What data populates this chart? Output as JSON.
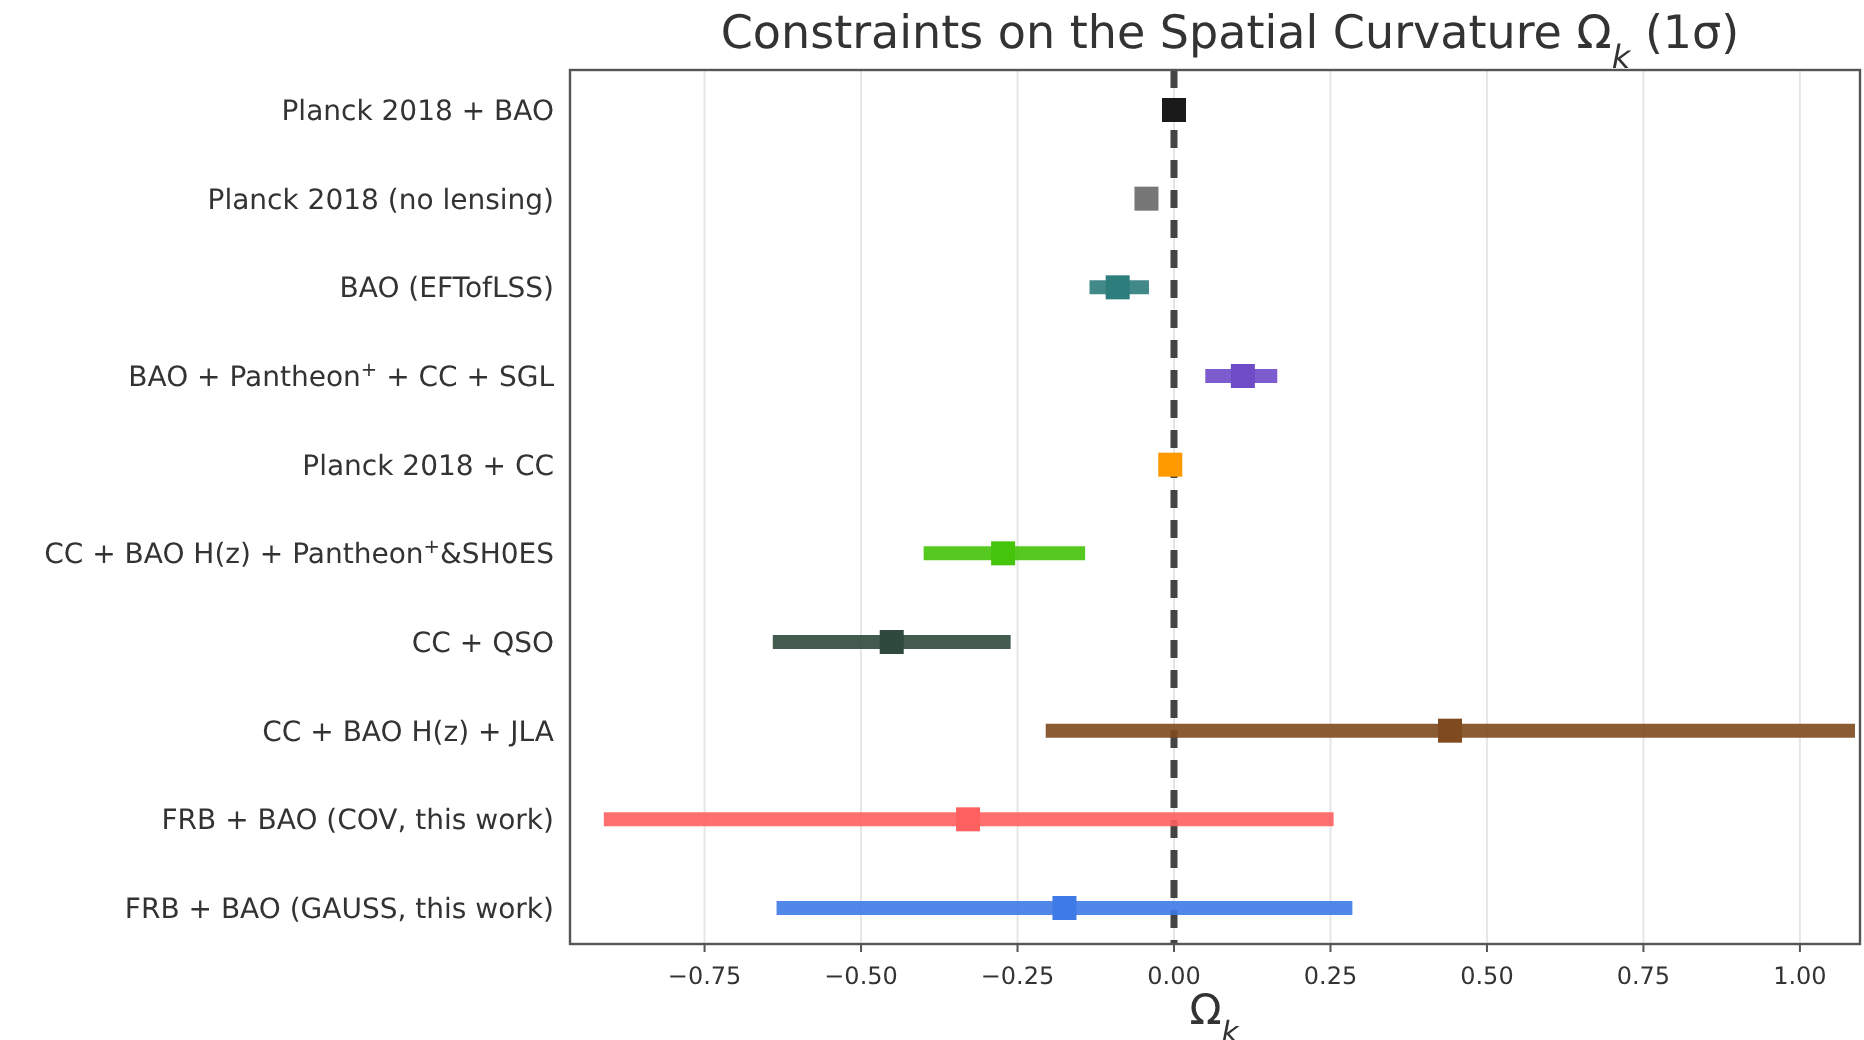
{
  "chart_data": {
    "type": "scatter",
    "orientation": "horizontal",
    "title": "Constraints on the Spatial Curvature Ω$_{k}$ (1σ)",
    "xlabel": "Ω$_{k}$",
    "categories": [
      "Planck 2018 + BAO",
      "Planck 2018 (no lensing)",
      "BAO (EFTofLSS)",
      "BAO + Pantheon$^{+}$ + CC + SGL",
      "Planck 2018 + CC",
      "CC + BAO H(z) + Pantheon$^{+}$&SH0ES",
      "CC + QSO",
      "CC + BAO H(z) + JLA",
      "FRB + BAO (COV, this work)",
      "FRB + BAO (GAUSS, this work)"
    ],
    "values": [
      0.0,
      -0.044,
      -0.09,
      0.11,
      -0.006,
      -0.273,
      -0.451,
      0.441,
      -0.329,
      -0.175
    ],
    "errors": [
      null,
      null,
      [
        -0.135,
        -0.04
      ],
      [
        0.05,
        0.165
      ],
      null,
      [
        -0.4,
        -0.142
      ],
      [
        -0.641,
        -0.261
      ],
      [
        -0.205,
        1.088
      ],
      [
        -0.911,
        0.255
      ],
      [
        -0.635,
        0.285
      ]
    ],
    "colors": [
      "#1a1a1a",
      "#777777",
      "#2e7d7d",
      "#6f4bc8",
      "#ff9900",
      "#44c40a",
      "#2f4a3c",
      "#7f4a1f",
      "#ff6060",
      "#3f7be6"
    ],
    "xlim": [
      -0.965,
      1.096
    ],
    "xticks": [
      {
        "value": -0.75,
        "label": "−0.75"
      },
      {
        "value": -0.5,
        "label": "−0.50"
      },
      {
        "value": -0.25,
        "label": "−0.25"
      },
      {
        "value": 0,
        "label": "0.00"
      },
      {
        "value": 0.25,
        "label": "0.25"
      },
      {
        "value": 0.5,
        "label": "0.50"
      },
      {
        "value": 0.75,
        "label": "0.75"
      },
      {
        "value": 1,
        "label": "1.00"
      }
    ],
    "ref_lines": [
      {
        "axis": "x",
        "value": 0,
        "color": "#444444",
        "line_style": "dashed"
      }
    ],
    "grid": "x",
    "marker": "square"
  }
}
